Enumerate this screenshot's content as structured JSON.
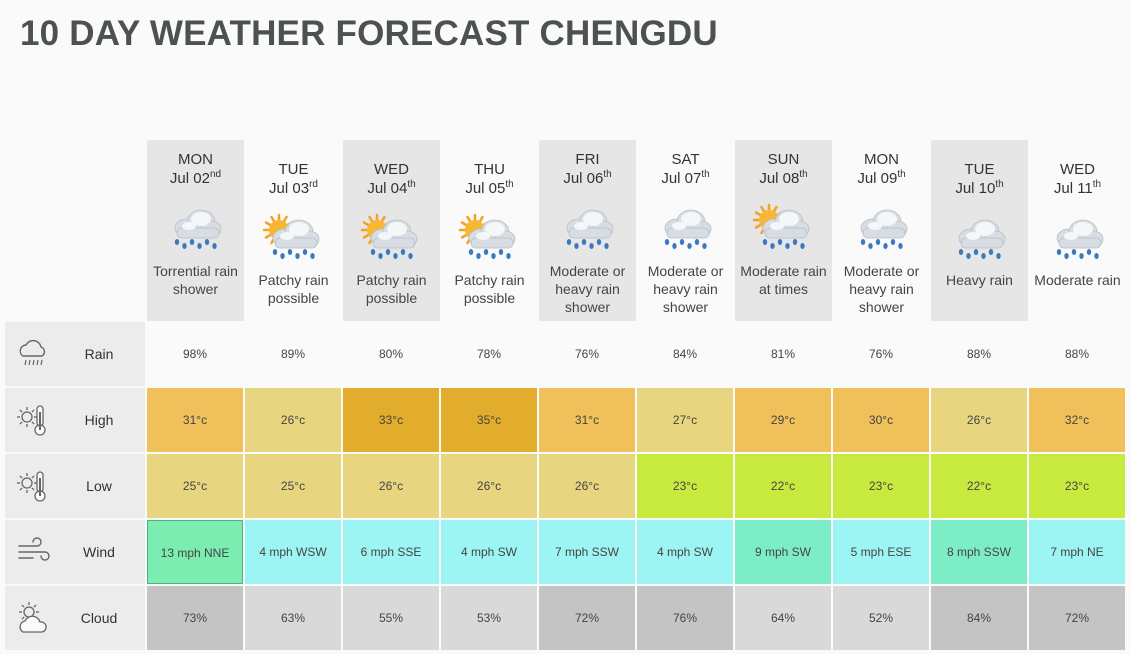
{
  "page": {
    "title": "10 DAY WEATHER FORECAST CHENGDU"
  },
  "row_labels": {
    "rain": "Rain",
    "high": "High",
    "low": "Low",
    "wind": "Wind",
    "cloud": "Cloud"
  },
  "row_icons": {
    "rain": "rain-cloud-icon",
    "high": "thermometer-sun-icon",
    "low": "thermometer-sun-icon",
    "wind": "wind-icon",
    "cloud": "sun-cloud-icon"
  },
  "days": [
    {
      "name": "MON",
      "date": "Jul 02",
      "suffix": "nd",
      "condition": "Torrential rain shower",
      "icon": "rain-cloud-icon",
      "rain": "98%",
      "high": "31°c",
      "low": "25°c",
      "wind": "13 mph NNE",
      "cloud": "73%"
    },
    {
      "name": "TUE",
      "date": "Jul 03",
      "suffix": "rd",
      "condition": "Patchy rain possible",
      "icon": "sun-rain-cloud-icon",
      "rain": "89%",
      "high": "26°c",
      "low": "25°c",
      "wind": "4 mph WSW",
      "cloud": "63%"
    },
    {
      "name": "WED",
      "date": "Jul 04",
      "suffix": "th",
      "condition": "Patchy rain possible",
      "icon": "sun-rain-cloud-icon",
      "rain": "80%",
      "high": "33°c",
      "low": "26°c",
      "wind": "6 mph SSE",
      "cloud": "55%"
    },
    {
      "name": "THU",
      "date": "Jul 05",
      "suffix": "th",
      "condition": "Patchy rain possible",
      "icon": "sun-rain-cloud-icon",
      "rain": "78%",
      "high": "35°c",
      "low": "26°c",
      "wind": "4 mph SW",
      "cloud": "53%"
    },
    {
      "name": "FRI",
      "date": "Jul 06",
      "suffix": "th",
      "condition": "Moderate or heavy rain shower",
      "icon": "rain-cloud-icon",
      "rain": "76%",
      "high": "31°c",
      "low": "26°c",
      "wind": "7 mph SSW",
      "cloud": "72%"
    },
    {
      "name": "SAT",
      "date": "Jul 07",
      "suffix": "th",
      "condition": "Moderate or heavy rain shower",
      "icon": "rain-cloud-icon",
      "rain": "84%",
      "high": "27°c",
      "low": "23°c",
      "wind": "4 mph SW",
      "cloud": "76%"
    },
    {
      "name": "SUN",
      "date": "Jul 08",
      "suffix": "th",
      "condition": "Moderate rain at times",
      "icon": "sun-rain-cloud-icon",
      "rain": "81%",
      "high": "29°c",
      "low": "22°c",
      "wind": "9 mph SW",
      "cloud": "64%"
    },
    {
      "name": "MON",
      "date": "Jul 09",
      "suffix": "th",
      "condition": "Moderate or heavy rain shower",
      "icon": "rain-cloud-icon",
      "rain": "76%",
      "high": "30°c",
      "low": "23°c",
      "wind": "5 mph ESE",
      "cloud": "52%"
    },
    {
      "name": "TUE",
      "date": "Jul 10",
      "suffix": "th",
      "condition": "Heavy rain",
      "icon": "rain-cloud-icon",
      "rain": "88%",
      "high": "26°c",
      "low": "22°c",
      "wind": "8 mph SSW",
      "cloud": "84%"
    },
    {
      "name": "WED",
      "date": "Jul 11",
      "suffix": "th",
      "condition": "Moderate rain",
      "icon": "rain-cloud-icon",
      "rain": "88%",
      "high": "32°c",
      "low": "23°c",
      "wind": "7 mph NE",
      "cloud": "72%"
    }
  ],
  "colors": {
    "high": [
      "#f0c15a",
      "#e8d580",
      "#e2ad2c",
      "#e2ad2c",
      "#f0c15a",
      "#e8d580",
      "#f0c15a",
      "#f0c15a",
      "#e8d580",
      "#f0c15a"
    ],
    "low": [
      "#e8d580",
      "#e8d580",
      "#e8d580",
      "#e8d580",
      "#e8d580",
      "#c8ea3e",
      "#c8ea3e",
      "#c8ea3e",
      "#c8ea3e",
      "#c8ea3e"
    ],
    "wind": [
      "#7cedb0",
      "#9cf5f2",
      "#9cf5f2",
      "#9cf5f2",
      "#9cf5f2",
      "#9cf5f2",
      "#7cedc6",
      "#9cf5f2",
      "#7cedc6",
      "#9cf5f2"
    ],
    "cloud": [
      "#c4c4c4",
      "#d9d9d9",
      "#d9d9d9",
      "#d9d9d9",
      "#c4c4c4",
      "#c4c4c4",
      "#d9d9d9",
      "#d9d9d9",
      "#c4c4c4",
      "#c4c4c4"
    ]
  }
}
